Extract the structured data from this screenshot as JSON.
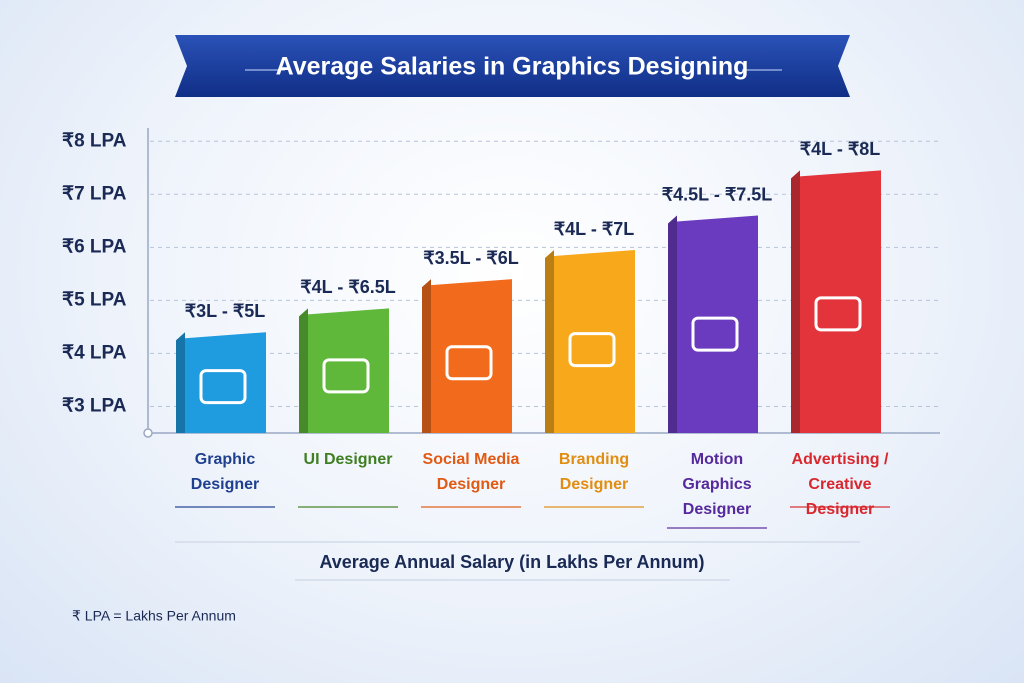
{
  "chart_data": {
    "type": "bar",
    "title": "Average Salaries in Graphics Designing",
    "categories": [
      "Graphic Designer",
      "UI Designer",
      "Social Media Designer",
      "Branding Designer",
      "Motion Graphics Designer",
      "Advertising / Creative Designer"
    ],
    "values": [
      4.4,
      4.85,
      5.4,
      5.95,
      6.6,
      7.45
    ],
    "range_labels": [
      "₹3L - ₹5L",
      "₹4L - ₹6.5L",
      "₹3.5L - ₹6L",
      "₹4L - ₹7L",
      "₹4.5L - ₹7.5L",
      "₹4L - ₹8L"
    ],
    "colors": [
      "#1f9be0",
      "#5fb83a",
      "#f26a1b",
      "#f7a81b",
      "#6a3bbf",
      "#e3343c"
    ],
    "label_colors": [
      "#1f3f8f",
      "#3f7f22",
      "#e05a14",
      "#e08d12",
      "#56299c",
      "#d8282e"
    ],
    "ylim": [
      2.5,
      8.25
    ],
    "yticks": [
      {
        "value": 3,
        "label": "₹3 LPA"
      },
      {
        "value": 4,
        "label": "₹4 LPA"
      },
      {
        "value": 5,
        "label": "₹5 LPA"
      },
      {
        "value": 6,
        "label": "₹6 LPA"
      },
      {
        "value": 7,
        "label": "₹7 LPA"
      },
      {
        "value": 8,
        "label": "₹8 LPA"
      }
    ],
    "grid": true,
    "x_axis_label": "Average Annual Salary (in Lakhs Per Annum)",
    "footnote": "₹ LPA = Lakhs Per Annum"
  }
}
